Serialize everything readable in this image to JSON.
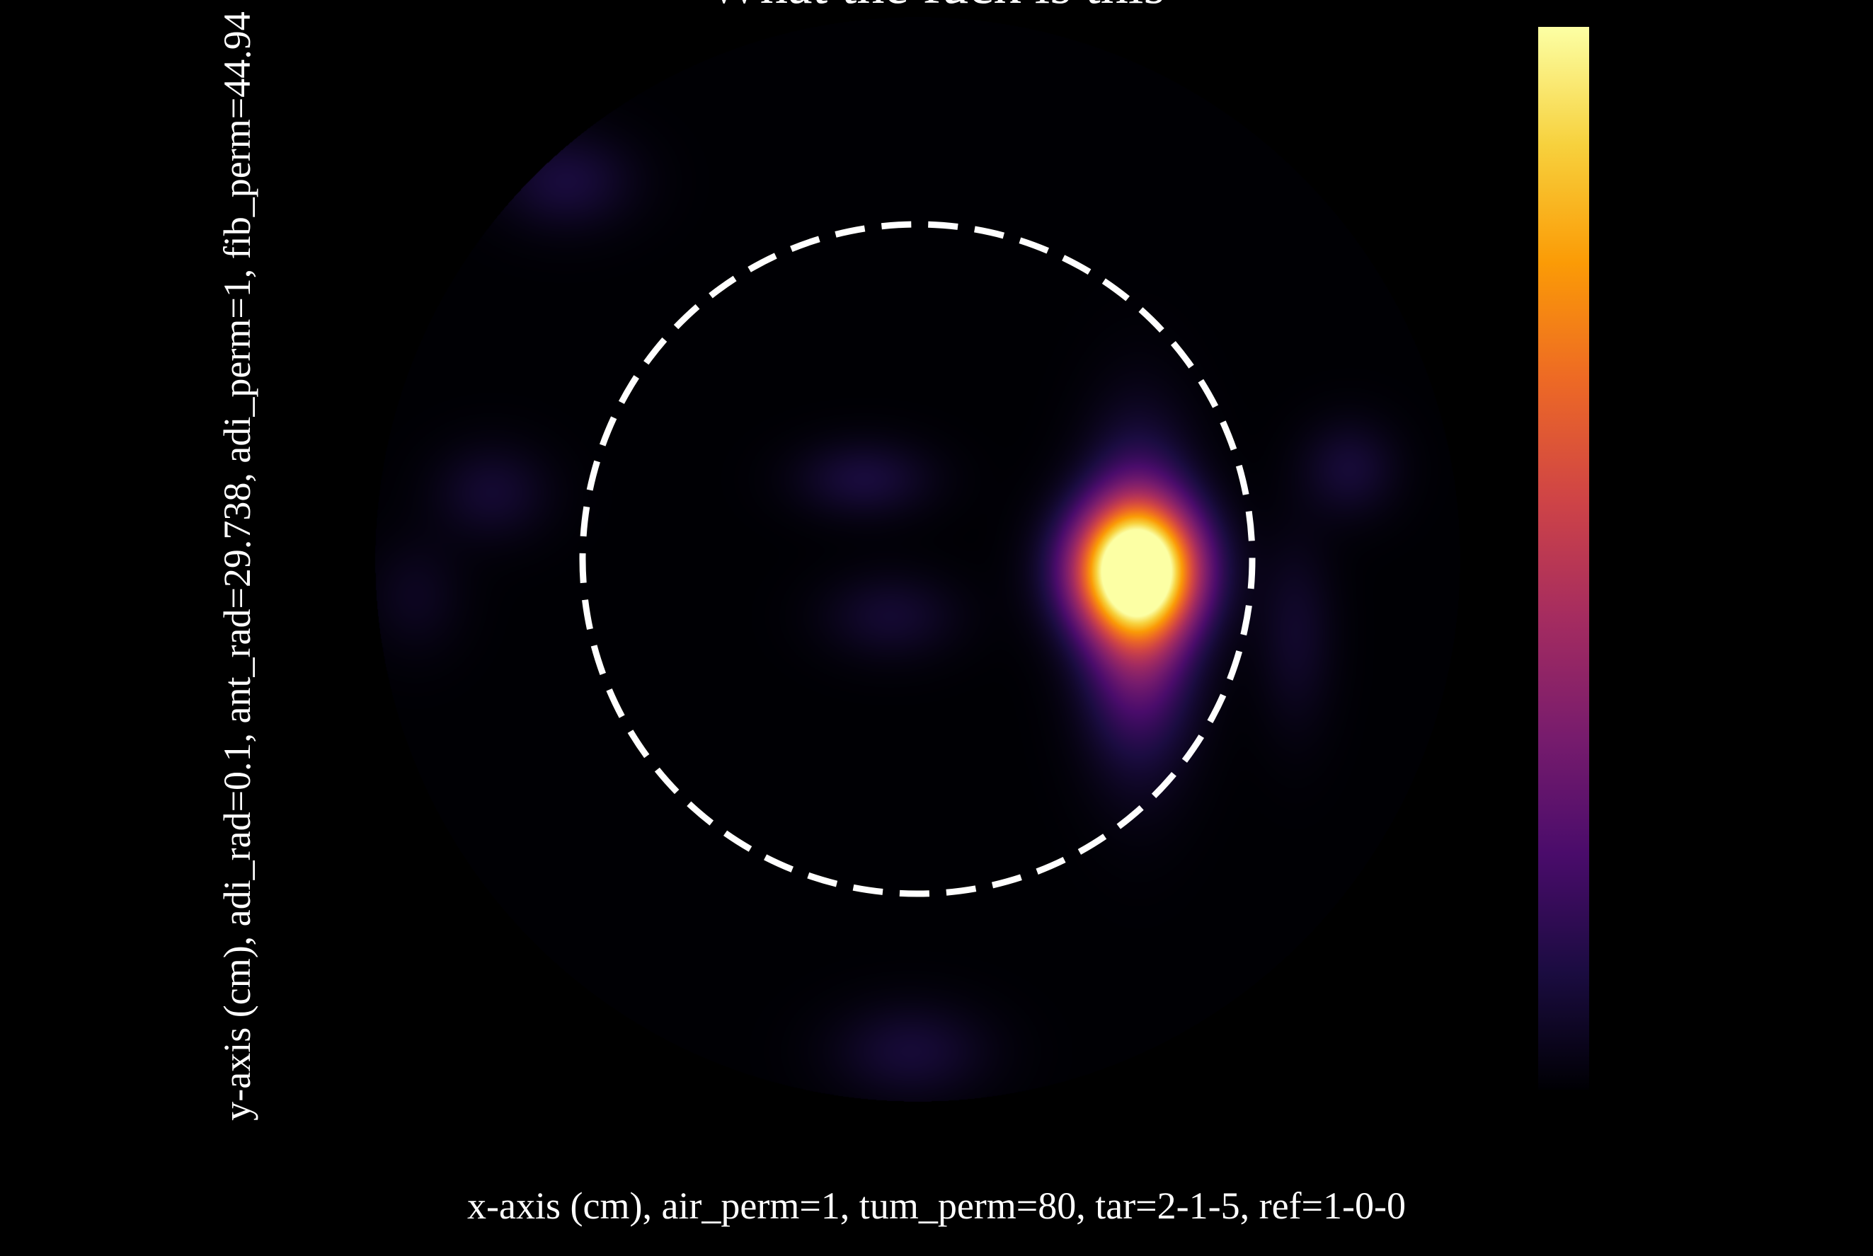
{
  "chart_data": {
    "type": "heatmap",
    "title": "What the fuck is this",
    "xlabel": "x-axis (cm), air_perm=1, tum_perm=80, tar=2-1-5, ref=1-0-0",
    "ylabel": "y-axis (cm), adi_rad=0.1, ant_rad=29.738, adi_perm=1, fib_perm=44.94",
    "colormap": "inferno",
    "axes_visible": false,
    "grid": false,
    "colorbar": {
      "position": "right",
      "tick_labels": [],
      "colors": [
        "#000004",
        "#1b0c41",
        "#4a0c6b",
        "#781c6d",
        "#a52c60",
        "#cf4446",
        "#ed6925",
        "#fb9b06",
        "#f7d13d",
        "#fcffa4"
      ]
    },
    "hotspots": [
      {
        "x": 0.65,
        "y": -0.03,
        "intensity": 1.0,
        "sx": 0.13,
        "sy": 0.13
      },
      {
        "x": 0.66,
        "y": -0.12,
        "intensity": 0.45,
        "sx": 0.11,
        "sy": 0.28
      },
      {
        "x": -0.16,
        "y": 0.24,
        "intensity": 0.1,
        "sx": 0.14,
        "sy": 0.08
      },
      {
        "x": -0.08,
        "y": -0.17,
        "intensity": 0.08,
        "sx": 0.14,
        "sy": 0.09
      },
      {
        "x": -1.27,
        "y": 0.2,
        "intensity": 0.08,
        "sx": 0.12,
        "sy": 0.1
      },
      {
        "x": 1.29,
        "y": 0.27,
        "intensity": 0.09,
        "sx": 0.1,
        "sy": 0.1
      },
      {
        "x": 1.13,
        "y": -0.22,
        "intensity": 0.07,
        "sx": 0.08,
        "sy": 0.2
      },
      {
        "x": -1.05,
        "y": 1.13,
        "intensity": 0.1,
        "sx": 0.14,
        "sy": 0.1
      },
      {
        "x": -0.02,
        "y": -1.47,
        "intensity": 0.09,
        "sx": 0.16,
        "sy": 0.1
      },
      {
        "x": -1.5,
        "y": -0.11,
        "intensity": 0.05,
        "sx": 0.1,
        "sy": 0.12
      }
    ],
    "outline_circle": {
      "cx": 0,
      "cy": 0,
      "r": 1,
      "style": "dashed",
      "color": "#ffffff"
    },
    "field_circle": {
      "r": 1.62
    }
  }
}
